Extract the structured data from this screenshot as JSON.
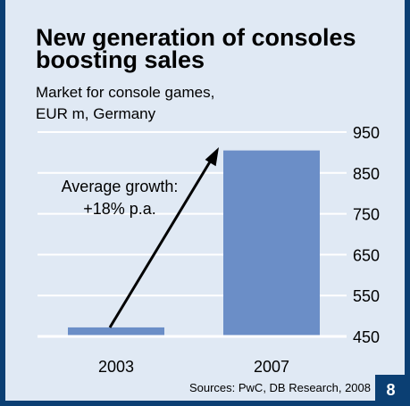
{
  "header": {
    "title": "New generation of consoles boosting sales",
    "subtitle_line1": "Market for console games,",
    "subtitle_line2": "EUR m, Germany"
  },
  "chart_data": {
    "type": "bar",
    "title": "New generation of consoles boosting sales",
    "subtitle": "Market for console games, EUR m, Germany",
    "categories": [
      "2003",
      "2007"
    ],
    "values": [
      472,
      905
    ],
    "ylim": [
      450,
      950
    ],
    "yticks": [
      950,
      850,
      750,
      650,
      550,
      450
    ],
    "ytick_labels": [
      "950",
      "850",
      "750",
      "650",
      "550",
      "450"
    ],
    "grid": true,
    "bar_color": "#6b8ec7",
    "annotation_line1": "Average growth:",
    "annotation_line2": "+18% p.a."
  },
  "footer": {
    "source": "Sources: PwC, DB Research, 2008",
    "page_number": "8"
  }
}
